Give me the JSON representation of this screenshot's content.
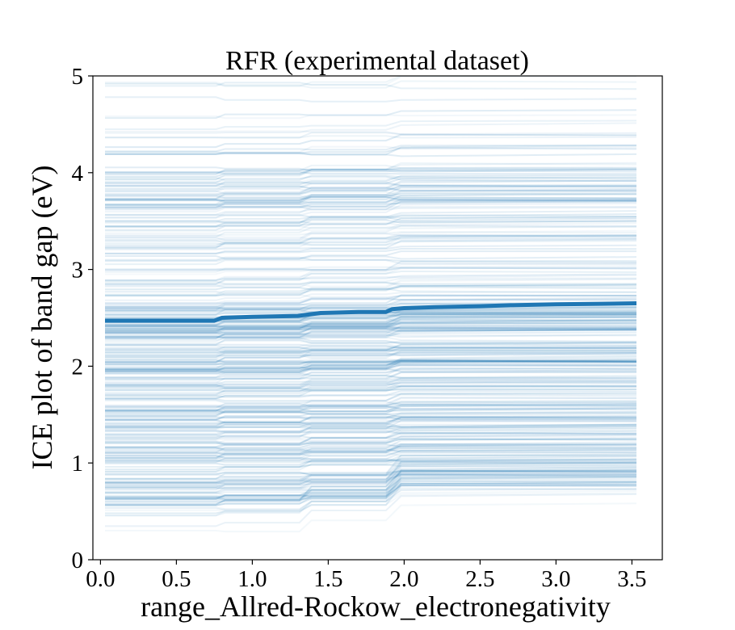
{
  "chart_data": {
    "type": "line",
    "title": "RFR (experimental dataset)",
    "xlabel": "range_Allred-Rockow_electronegativity",
    "ylabel": "ICE plot of band gap (eV)",
    "xlim": [
      -0.05,
      3.7
    ],
    "ylim": [
      0,
      5
    ],
    "x_ticks": [
      0.0,
      0.5,
      1.0,
      1.5,
      2.0,
      2.5,
      3.0,
      3.5
    ],
    "x_tick_labels": [
      "0.0",
      "0.5",
      "1.0",
      "1.5",
      "2.0",
      "2.5",
      "3.0",
      "3.5"
    ],
    "y_ticks": [
      0,
      1,
      2,
      3,
      4,
      5
    ],
    "y_tick_labels": [
      "0",
      "1",
      "2",
      "3",
      "4",
      "5"
    ],
    "grid": false,
    "colors": {
      "ice": "#1f77b4",
      "average": "#1f77b4"
    },
    "series": [
      {
        "role": "average",
        "x": [
          0.03,
          0.5,
          0.75,
          0.8,
          1.0,
          1.3,
          1.35,
          1.45,
          1.7,
          1.88,
          1.92,
          2.0,
          2.2,
          2.5,
          2.7,
          3.0,
          3.3,
          3.53
        ],
        "values": [
          2.47,
          2.47,
          2.47,
          2.5,
          2.51,
          2.52,
          2.53,
          2.55,
          2.56,
          2.56,
          2.59,
          2.6,
          2.61,
          2.62,
          2.63,
          2.64,
          2.645,
          2.65
        ]
      }
    ],
    "ice_curves": {
      "x_range": [
        0.03,
        3.53
      ],
      "step_positions": [
        0.78,
        1.33,
        1.9
      ],
      "start_value_range": [
        0.28,
        4.97
      ],
      "count": 400
    }
  }
}
